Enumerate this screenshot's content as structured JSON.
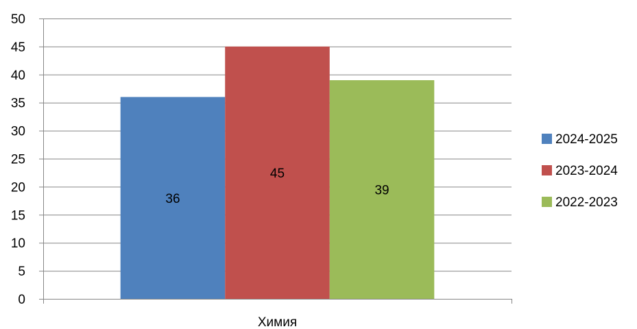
{
  "chart_data": {
    "type": "bar",
    "categories": [
      "Химия"
    ],
    "series": [
      {
        "name": "2024-2025",
        "values": [
          36
        ],
        "color": "#4f81bd"
      },
      {
        "name": "2023-2024",
        "values": [
          45
        ],
        "color": "#c0504d"
      },
      {
        "name": "2022-2023",
        "values": [
          39
        ],
        "color": "#9bbb59"
      }
    ],
    "ylim": [
      0,
      50
    ],
    "yticks": [
      0,
      5,
      10,
      15,
      20,
      25,
      30,
      35,
      40,
      45,
      50
    ],
    "grid": true,
    "legend_position": "right",
    "data_labels": true,
    "title": "",
    "xlabel": "",
    "ylabel": ""
  }
}
